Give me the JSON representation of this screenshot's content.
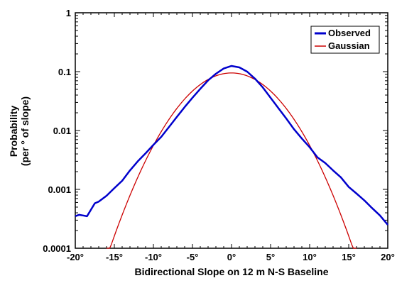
{
  "chart_data": {
    "type": "line",
    "title": "",
    "xlabel": "Bidirectional Slope on 12 m N-S Baseline",
    "ylabel_lines": [
      "Probability",
      "(per ° of slope)"
    ],
    "xlim": [
      -20,
      20
    ],
    "ylim": [
      0.0001,
      1
    ],
    "yscale": "log",
    "grid": false,
    "legend_position": "top-right",
    "x_ticks": [
      -20,
      -15,
      -10,
      -5,
      0,
      5,
      10,
      15,
      20
    ],
    "x_tick_labels": [
      "-20°",
      "-15°",
      "-10°",
      "-5°",
      "0°",
      "5°",
      "10°",
      "15°",
      "20°"
    ],
    "y_ticks": [
      0.0001,
      0.001,
      0.01,
      0.1,
      1
    ],
    "y_tick_labels": [
      "0.0001",
      "0.001",
      "0.01",
      "0.1",
      "1"
    ],
    "series": [
      {
        "name": "Observed",
        "color": "#0000cc",
        "x": [
          -20,
          -19.5,
          -19,
          -18.5,
          -18,
          -17.5,
          -17,
          -16,
          -15,
          -14,
          -13,
          -12,
          -11,
          -10,
          -9,
          -8,
          -7,
          -6,
          -5,
          -4,
          -3,
          -2,
          -1,
          0,
          1,
          2,
          3,
          4,
          5,
          6,
          7,
          8,
          9,
          10,
          11,
          12,
          13,
          14,
          15,
          16,
          17,
          18,
          19,
          20
        ],
        "y": [
          0.00035,
          0.00037,
          0.00036,
          0.00035,
          0.00045,
          0.00058,
          0.00062,
          0.00078,
          0.00105,
          0.0014,
          0.0021,
          0.003,
          0.0041,
          0.0057,
          0.0078,
          0.0115,
          0.017,
          0.025,
          0.036,
          0.051,
          0.071,
          0.092,
          0.113,
          0.125,
          0.118,
          0.1,
          0.076,
          0.054,
          0.036,
          0.024,
          0.016,
          0.0105,
          0.0073,
          0.0052,
          0.0035,
          0.0028,
          0.0021,
          0.0016,
          0.0011,
          0.00085,
          0.00065,
          0.00048,
          0.00036,
          0.00025
        ]
      },
      {
        "name": "Gaussian",
        "color": "#cc0000",
        "peak": 0.095,
        "sigma": 4.2,
        "x_range": [
          -16,
          16
        ]
      }
    ]
  }
}
